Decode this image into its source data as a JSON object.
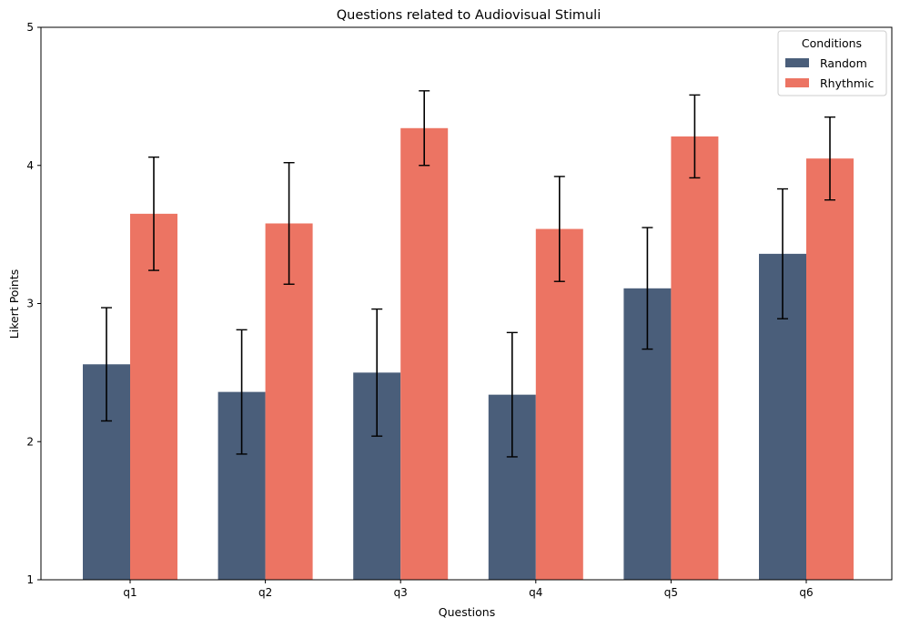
{
  "chart_data": {
    "type": "bar",
    "title": "Questions related to Audiovisual Stimuli",
    "xlabel": "Questions",
    "ylabel": "Likert Points",
    "categories": [
      "q1",
      "q2",
      "q3",
      "q4",
      "q5",
      "q6"
    ],
    "ylim": [
      1,
      5
    ],
    "yticks": [
      "1",
      "2",
      "3",
      "4",
      "5"
    ],
    "grid": false,
    "legend": {
      "title": "Conditions",
      "placement": "top-right"
    },
    "series": [
      {
        "name": "Random",
        "color": "#4a5e7a",
        "values": [
          2.56,
          2.36,
          2.5,
          2.34,
          3.11,
          3.36
        ],
        "error": [
          0.41,
          0.45,
          0.46,
          0.45,
          0.44,
          0.47
        ]
      },
      {
        "name": "Rhythmic",
        "color": "#ec7463",
        "values": [
          3.65,
          3.58,
          4.27,
          3.54,
          4.21,
          4.05
        ],
        "error": [
          0.41,
          0.44,
          0.27,
          0.38,
          0.3,
          0.3
        ]
      }
    ]
  }
}
